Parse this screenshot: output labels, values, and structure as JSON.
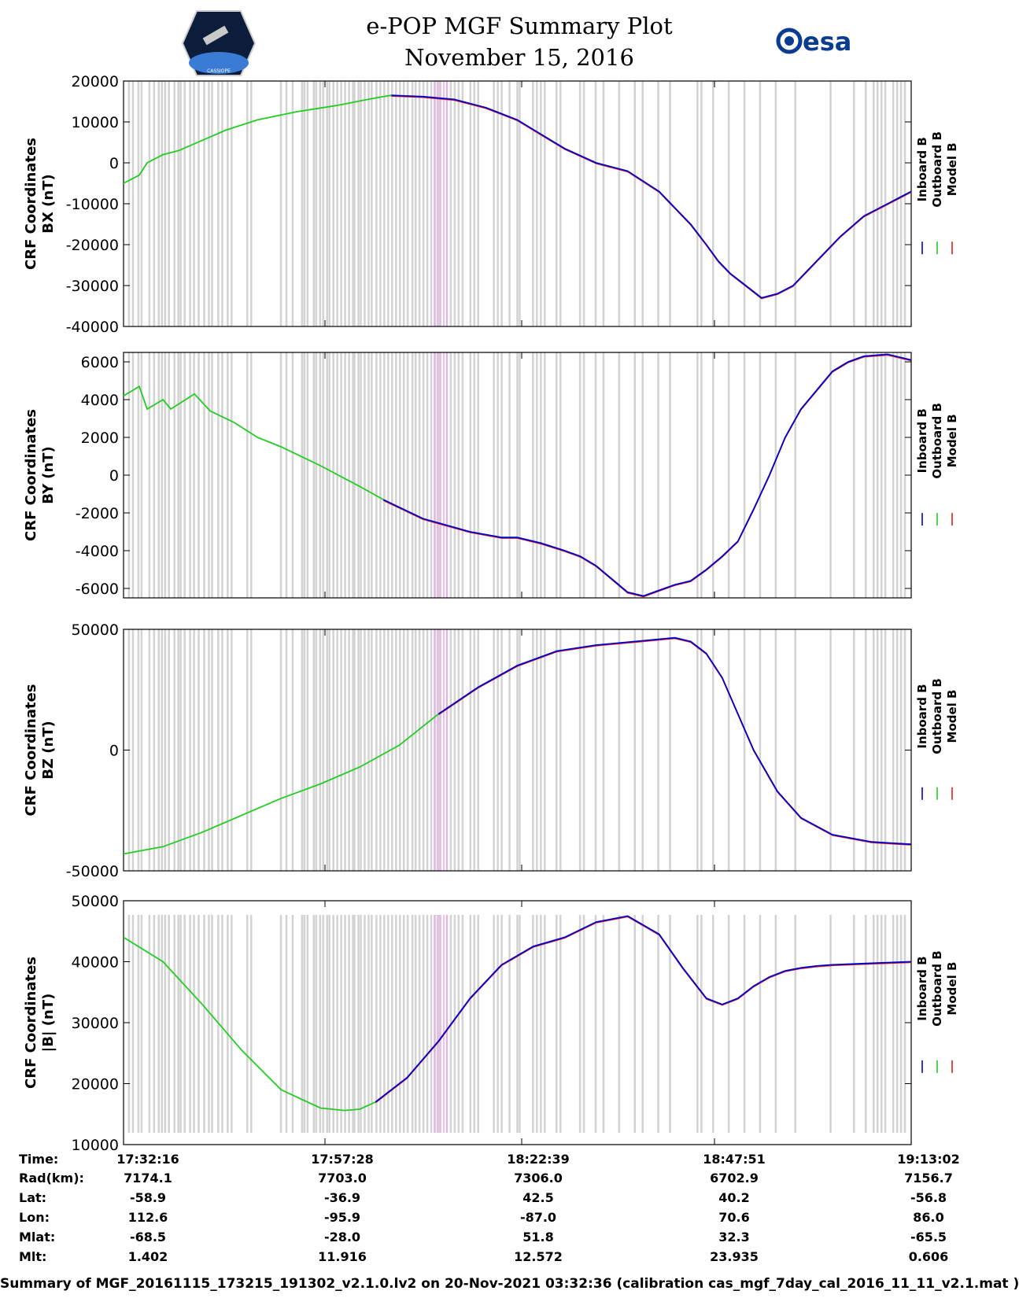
{
  "header": {
    "title": "e-POP MGF Summary Plot",
    "date": "November 15, 2016",
    "left_logo": "CASSIOPE",
    "right_logo": "esa"
  },
  "legend": [
    "Inboard B",
    "Outboard B",
    "Model B"
  ],
  "colors": {
    "inboard": "#0000cc",
    "outboard": "#22cc22",
    "model": "#e02020",
    "bar_gray": "#d3d3d3",
    "bar_pink": "#e8a9e8"
  },
  "chart_data": [
    {
      "type": "line",
      "name": "bx",
      "ylabel": [
        "CRF Coordinates",
        "BX (nT)"
      ],
      "ylim": [
        -40000,
        20000
      ],
      "yticks": [
        "20000",
        "10000",
        "0",
        "-10000",
        "-20000",
        "-30000",
        "-40000"
      ],
      "green": {
        "x": [
          0,
          0.01,
          0.02,
          0.03,
          0.05,
          0.07,
          0.1,
          0.13,
          0.17,
          0.22,
          0.27,
          0.31,
          0.33,
          0.34
        ],
        "y": [
          -5000,
          -4000,
          -3000,
          0,
          2000,
          3000,
          5500,
          8000,
          10500,
          12500,
          14000,
          15500,
          16200,
          16500
        ]
      },
      "blue": {
        "x": [
          0.34,
          0.38,
          0.42,
          0.46,
          0.5,
          0.53,
          0.56,
          0.6,
          0.64,
          0.68,
          0.7,
          0.72,
          0.74,
          0.755,
          0.77,
          0.79,
          0.81,
          0.83,
          0.85,
          0.88,
          0.91,
          0.94,
          0.97,
          1
        ],
        "y": [
          16500,
          16200,
          15500,
          13500,
          10500,
          7000,
          3500,
          0,
          -2000,
          -7000,
          -11000,
          -15000,
          -20000,
          -24000,
          -27000,
          -30000,
          -33000,
          -32000,
          -30000,
          -24000,
          -18000,
          -13000,
          -10000,
          -7000
        ]
      }
    },
    {
      "type": "line",
      "name": "by",
      "ylabel": [
        "CRF Coordinates",
        "BY (nT)"
      ],
      "ylim": [
        -6500,
        6500
      ],
      "yticks": [
        "6000",
        "4000",
        "2000",
        "0",
        "-2000",
        "-4000",
        "-6000"
      ],
      "green": {
        "x": [
          0,
          0.02,
          0.03,
          0.05,
          0.06,
          0.09,
          0.11,
          0.14,
          0.17,
          0.2,
          0.25,
          0.3,
          0.33
        ],
        "y": [
          4200,
          4700,
          3500,
          4000,
          3500,
          4300,
          3400,
          2800,
          2000,
          1500,
          500,
          -600,
          -1300
        ]
      },
      "blue": {
        "x": [
          0.33,
          0.38,
          0.44,
          0.48,
          0.5,
          0.53,
          0.56,
          0.58,
          0.6,
          0.62,
          0.64,
          0.66,
          0.68,
          0.7,
          0.72,
          0.74,
          0.76,
          0.78,
          0.8,
          0.82,
          0.84,
          0.86,
          0.88,
          0.9,
          0.92,
          0.94,
          0.97,
          1
        ],
        "y": [
          -1300,
          -2300,
          -3000,
          -3300,
          -3300,
          -3600,
          -4000,
          -4300,
          -4800,
          -5500,
          -6200,
          -6400,
          -6100,
          -5800,
          -5600,
          -5000,
          -4300,
          -3500,
          -1800,
          0,
          2000,
          3500,
          4500,
          5500,
          6000,
          6300,
          6400,
          6100
        ]
      }
    },
    {
      "type": "line",
      "name": "bz",
      "ylabel": [
        "CRF Coordinates",
        "BZ (nT)"
      ],
      "ylim": [
        -50000,
        50000
      ],
      "yticks": [
        "50000",
        "0",
        "-50000"
      ],
      "green": {
        "x": [
          0,
          0.05,
          0.1,
          0.15,
          0.2,
          0.25,
          0.3,
          0.35,
          0.4
        ],
        "y": [
          -43000,
          -40000,
          -34000,
          -27000,
          -20000,
          -14000,
          -7000,
          2000,
          15000
        ]
      },
      "blue": {
        "x": [
          0.4,
          0.45,
          0.5,
          0.55,
          0.6,
          0.65,
          0.7,
          0.72,
          0.74,
          0.76,
          0.78,
          0.8,
          0.83,
          0.86,
          0.9,
          0.95,
          1
        ],
        "y": [
          15000,
          26000,
          35000,
          41000,
          43500,
          45000,
          46500,
          45000,
          40000,
          30000,
          15000,
          0,
          -17000,
          -28000,
          -35000,
          -38000,
          -39000
        ]
      }
    },
    {
      "type": "line",
      "name": "btotal",
      "ylabel": [
        "CRF Coordinates",
        "|B| (nT)"
      ],
      "ylim": [
        10000,
        50000
      ],
      "yticks": [
        "50000",
        "40000",
        "30000",
        "20000",
        "10000"
      ],
      "green": {
        "x": [
          0,
          0.05,
          0.1,
          0.15,
          0.2,
          0.25,
          0.28,
          0.3,
          0.32
        ],
        "y": [
          44000,
          40000,
          33000,
          25500,
          19000,
          16000,
          15600,
          15800,
          17000
        ]
      },
      "blue": {
        "x": [
          0.32,
          0.36,
          0.4,
          0.44,
          0.48,
          0.52,
          0.56,
          0.6,
          0.64,
          0.68,
          0.71,
          0.74,
          0.76,
          0.78,
          0.8,
          0.82,
          0.84,
          0.86,
          0.88,
          0.9,
          0.94,
          1
        ],
        "y": [
          17000,
          21000,
          27000,
          34000,
          39500,
          42500,
          44000,
          46500,
          47500,
          44500,
          39000,
          34000,
          33000,
          34000,
          36000,
          37500,
          38500,
          39000,
          39300,
          39500,
          39700,
          40000
        ]
      }
    }
  ],
  "orbit": {
    "labels": [
      "Time:",
      "Rad(km):",
      "Lat:",
      "Lon:",
      "Mlat:",
      "Mlt:"
    ],
    "columns": [
      [
        "17:32:16",
        "7174.1",
        "-58.9",
        "112.6",
        "-68.5",
        "1.402"
      ],
      [
        "17:57:28",
        "7703.0",
        "-36.9",
        "-95.9",
        "-28.0",
        "11.916"
      ],
      [
        "18:22:39",
        "7306.0",
        "42.5",
        "-87.0",
        "51.8",
        "12.572"
      ],
      [
        "18:47:51",
        "6702.9",
        "40.2",
        "70.6",
        "32.3",
        "23.935"
      ],
      [
        "19:13:02",
        "7156.7",
        "-56.8",
        "86.0",
        "-65.5",
        "0.606"
      ]
    ]
  },
  "footer": "Summary of MGF_20161115_173215_191302_v2.1.0.lv2 on 20-Nov-2021 03:32:36 (calibration cas_mgf_7day_cal_2016_11_11_v2.1.mat )"
}
